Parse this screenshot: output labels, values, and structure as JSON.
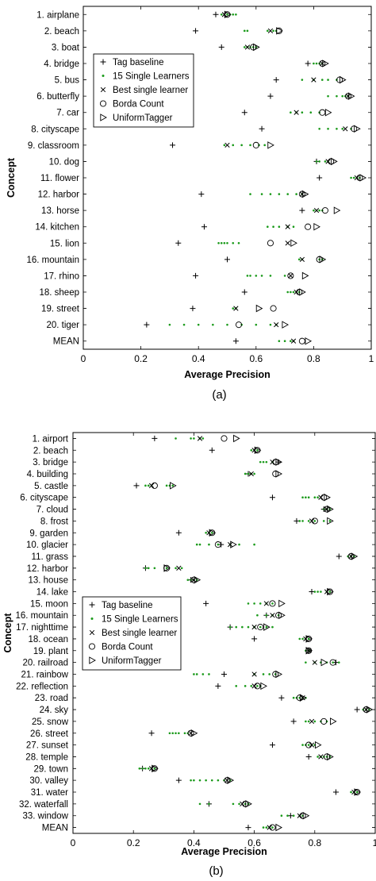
{
  "chart_data": [
    {
      "type": "scatter",
      "panel_label": "(a)",
      "xlabel": "Average Precision",
      "ylabel": "Concept",
      "xlim": [
        0,
        1
      ],
      "xticks": [
        "0",
        "0.2",
        "0.4",
        "0.6",
        "0.8",
        "1"
      ],
      "grid": false,
      "legend_position": "top-left",
      "legend": [
        "Tag baseline",
        "15 Single Learners",
        "Best single learner",
        "Borda Count",
        "UniformTagger"
      ],
      "categories": [
        "1. airplane",
        "2. beach",
        "3. boat",
        "4. bridge",
        "5. bus",
        "6. butterfly",
        "7. car",
        "8. cityscape",
        "9. classroom",
        "10. dog",
        "11. flower",
        "12. harbor",
        "13. horse",
        "14. kitchen",
        "15. lion",
        "16. mountain",
        "17. rhino",
        "18. sheep",
        "19. street",
        "20. tiger",
        "MEAN"
      ],
      "series": [
        {
          "name": "Tag baseline",
          "marker": "plus",
          "values": [
            0.46,
            0.39,
            0.48,
            0.78,
            0.67,
            0.65,
            0.56,
            0.62,
            0.31,
            0.81,
            0.82,
            0.41,
            0.76,
            0.42,
            0.33,
            0.5,
            0.39,
            0.56,
            0.38,
            0.22,
            0.53
          ]
        },
        {
          "name": "15 Single Learners",
          "marker": "dot",
          "values": [
            [
              0.48,
              0.49,
              0.5,
              0.51,
              0.52,
              0.53
            ],
            [
              0.56,
              0.57,
              0.64,
              0.66,
              0.67
            ],
            [
              0.56,
              0.57,
              0.58,
              0.59,
              0.6
            ],
            [
              0.8,
              0.81,
              0.82,
              0.83
            ],
            [
              0.76,
              0.8,
              0.83,
              0.85,
              0.88
            ],
            [
              0.85,
              0.88,
              0.9,
              0.91,
              0.92
            ],
            [
              0.72,
              0.74,
              0.76,
              0.79,
              0.82
            ],
            [
              0.82,
              0.85,
              0.88,
              0.9,
              0.93
            ],
            [
              0.49,
              0.52,
              0.55,
              0.58,
              0.61,
              0.63
            ],
            [
              0.81,
              0.82,
              0.84,
              0.85
            ],
            [
              0.93,
              0.94,
              0.95,
              0.96
            ],
            [
              0.58,
              0.62,
              0.65,
              0.68,
              0.71,
              0.74,
              0.76
            ],
            [
              0.8,
              0.81,
              0.82,
              0.83
            ],
            [
              0.64,
              0.66,
              0.68,
              0.71,
              0.73
            ],
            [
              0.47,
              0.48,
              0.49,
              0.5,
              0.52,
              0.54
            ],
            [
              0.75,
              0.76,
              0.82,
              0.83
            ],
            [
              0.57,
              0.58,
              0.6,
              0.62,
              0.65,
              0.7
            ],
            [
              0.71,
              0.72,
              0.73,
              0.74,
              0.75
            ],
            [
              0.52,
              0.53
            ],
            [
              0.3,
              0.35,
              0.4,
              0.45,
              0.5,
              0.55,
              0.6,
              0.65,
              0.67
            ],
            [
              0.68,
              0.7,
              0.72,
              0.73
            ]
          ]
        },
        {
          "name": "Best single learner",
          "marker": "x",
          "values": [
            0.49,
            0.65,
            0.57,
            0.83,
            0.8,
            0.92,
            0.74,
            0.91,
            0.5,
            0.85,
            0.95,
            0.76,
            0.81,
            0.71,
            0.71,
            0.76,
            0.72,
            0.74,
            0.53,
            0.67,
            0.73
          ]
        },
        {
          "name": "Borda Count",
          "marker": "circle",
          "values": [
            0.5,
            0.68,
            0.59,
            0.83,
            0.89,
            0.92,
            0.83,
            0.94,
            0.6,
            0.86,
            0.96,
            0.76,
            0.84,
            0.78,
            0.65,
            0.82,
            0.72,
            0.75,
            0.66,
            0.54,
            0.76
          ]
        },
        {
          "name": "UniformTagger",
          "marker": "triangle-right",
          "values": [
            0.5,
            0.68,
            0.6,
            0.84,
            0.9,
            0.93,
            0.85,
            0.95,
            0.65,
            0.87,
            0.97,
            0.77,
            0.88,
            0.81,
            0.73,
            0.83,
            0.77,
            0.76,
            0.61,
            0.7,
            0.78
          ]
        }
      ]
    },
    {
      "type": "scatter",
      "panel_label": "(b)",
      "xlabel": "Average Precision",
      "ylabel": "Concept",
      "xlim": [
        0,
        1
      ],
      "xticks": [
        "0",
        "0.2",
        "0.4",
        "0.6",
        "0.8",
        "1"
      ],
      "grid": false,
      "legend_position": "center-left",
      "legend": [
        "Tag baseline",
        "15 Single Learners",
        "Best single learner",
        "Borda Count",
        "UniformTagger"
      ],
      "categories": [
        "1. airport",
        "2. beach",
        "3. bridge",
        "4. building",
        "5. castle",
        "6. cityscape",
        "7. cloud",
        "8. frost",
        "9. garden",
        "10. glacier",
        "11. grass",
        "12. harbor",
        "13. house",
        "14. lake",
        "15. moon",
        "16. mountain",
        "17. nighttime",
        "18. ocean",
        "19. plant",
        "20. railroad",
        "21. rainbow",
        "22. reflection",
        "23. road",
        "24. sky",
        "25. snow",
        "26. street",
        "27. sunset",
        "28. temple",
        "29. town",
        "30. valley",
        "31. water",
        "32. waterfall",
        "33. window",
        "MEAN"
      ],
      "series": [
        {
          "name": "Tag baseline",
          "marker": "plus",
          "values": [
            0.27,
            0.46,
            0.68,
            0.58,
            0.21,
            0.66,
            0.83,
            0.74,
            0.35,
            0.49,
            0.88,
            0.24,
            0.39,
            0.79,
            0.44,
            0.64,
            0.52,
            0.6,
            0.78,
            0.87,
            0.5,
            0.48,
            0.69,
            0.94,
            0.73,
            0.26,
            0.66,
            0.78,
            0.23,
            0.35,
            0.87,
            0.45,
            0.72,
            0.58
          ],
          "note": "values read off the plot"
        },
        {
          "name": "15 Single Learners",
          "marker": "dot",
          "values": [
            [
              0.34,
              0.39,
              0.4,
              0.42,
              0.43
            ],
            [
              0.59,
              0.6,
              0.61
            ],
            [
              0.62,
              0.63,
              0.64,
              0.66
            ],
            [
              0.57,
              0.58,
              0.59,
              0.6
            ],
            [
              0.24,
              0.25,
              0.26,
              0.31,
              0.32,
              0.33
            ],
            [
              0.76,
              0.77,
              0.78,
              0.8,
              0.81
            ],
            [
              0.83,
              0.84,
              0.85
            ],
            [
              0.75,
              0.76,
              0.78,
              0.8,
              0.83,
              0.85
            ],
            [
              0.44,
              0.45,
              0.46
            ],
            [
              0.41,
              0.42,
              0.45,
              0.48,
              0.52,
              0.55,
              0.6
            ],
            [
              0.91,
              0.92,
              0.93
            ],
            [
              0.24,
              0.25,
              0.27,
              0.31,
              0.34,
              0.36
            ],
            [
              0.38,
              0.39,
              0.4,
              0.41
            ],
            [
              0.8,
              0.81,
              0.82,
              0.84,
              0.85
            ],
            [
              0.58,
              0.6,
              0.62,
              0.64,
              0.66
            ],
            [
              0.61,
              0.64,
              0.66,
              0.68
            ],
            [
              0.52,
              0.54,
              0.56,
              0.58,
              0.6,
              0.62,
              0.64,
              0.66
            ],
            [
              0.75,
              0.76,
              0.77,
              0.78
            ],
            [
              0.77,
              0.78
            ],
            [
              0.77,
              0.8,
              0.82,
              0.84,
              0.86,
              0.88
            ],
            [
              0.4,
              0.41,
              0.43,
              0.45,
              0.6,
              0.63,
              0.65,
              0.67
            ],
            [
              0.54,
              0.57,
              0.59,
              0.61,
              0.62
            ],
            [
              0.73,
              0.74,
              0.75,
              0.76,
              0.77
            ],
            [
              0.96,
              0.97,
              0.98
            ],
            [
              0.77,
              0.78,
              0.8,
              0.82,
              0.84
            ],
            [
              0.32,
              0.33,
              0.34,
              0.35,
              0.37,
              0.38
            ],
            [
              0.76,
              0.77,
              0.78,
              0.79,
              0.8
            ],
            [
              0.81,
              0.82,
              0.83,
              0.84,
              0.85
            ],
            [
              0.22,
              0.23,
              0.24,
              0.25,
              0.26,
              0.27
            ],
            [
              0.39,
              0.4,
              0.42,
              0.44,
              0.46,
              0.48,
              0.5,
              0.52
            ],
            [
              0.92,
              0.93,
              0.94
            ],
            [
              0.42,
              0.45,
              0.53,
              0.55,
              0.57,
              0.58
            ],
            [
              0.69,
              0.71,
              0.73,
              0.75,
              0.76
            ],
            [
              0.63,
              0.64,
              0.65,
              0.66
            ]
          ]
        },
        {
          "name": "Best single learner",
          "marker": "x",
          "values": [
            0.42,
            0.6,
            0.66,
            0.59,
            0.26,
            0.82,
            0.84,
            0.79,
            0.45,
            0.52,
            0.92,
            0.35,
            0.4,
            0.84,
            0.64,
            0.66,
            0.6,
            0.77,
            0.78,
            0.8,
            0.6,
            0.6,
            0.76,
            0.97,
            0.79,
            0.39,
            0.79,
            0.82,
            0.26,
            0.51,
            0.93,
            0.56,
            0.75,
            0.65
          ],
          "note": "values read off the plot"
        },
        {
          "name": "Borda Count",
          "marker": "circle",
          "values": [
            0.5,
            0.61,
            0.67,
            0.67,
            0.27,
            0.83,
            0.84,
            0.8,
            0.46,
            0.48,
            0.92,
            0.31,
            0.4,
            0.85,
            0.66,
            0.68,
            0.62,
            0.78,
            0.78,
            0.86,
            0.67,
            0.61,
            0.75,
            0.97,
            0.83,
            0.39,
            0.78,
            0.84,
            0.27,
            0.51,
            0.94,
            0.57,
            0.76,
            0.66
          ],
          "note": "values read off the plot"
        },
        {
          "name": "UniformTagger",
          "marker": "triangle-right",
          "values": [
            0.54,
            0.61,
            0.68,
            0.68,
            0.33,
            0.84,
            0.85,
            0.85,
            0.46,
            0.53,
            0.93,
            0.31,
            0.41,
            0.85,
            0.69,
            0.69,
            0.64,
            0.78,
            0.78,
            0.83,
            0.68,
            0.63,
            0.76,
            0.98,
            0.86,
            0.4,
            0.81,
            0.85,
            0.27,
            0.52,
            0.94,
            0.58,
            0.77,
            0.68
          ],
          "note": "values read off the plot"
        }
      ]
    }
  ],
  "colors": {
    "axis": "#000000",
    "single_learners": "#1a9a1a",
    "markers": "#000000"
  }
}
